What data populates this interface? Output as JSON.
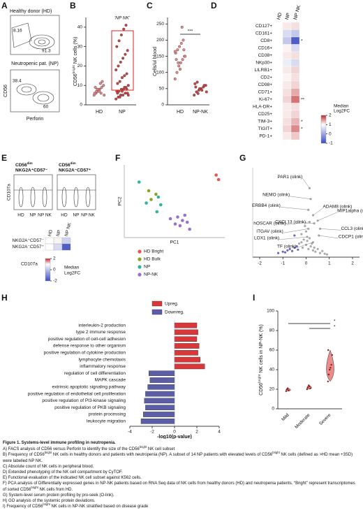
{
  "panels": {
    "A": {
      "label": "A",
      "title_top": "Healthy donor (HD)",
      "top_gates": [
        8.16,
        91.3
      ],
      "title_bottom": "Neutropenic pat. (NP)",
      "bottom_gates": [
        38.4,
        60
      ],
      "ylabel": "CD56",
      "xlabel": "Perforin"
    },
    "B": {
      "label": "B",
      "ylabel": [
        "CD56",
        {
          "sup": "bright"
        },
        " NK cells (%)"
      ],
      "annotation": "'NP NK'",
      "categories": [
        "HD",
        "NP"
      ],
      "ylim": [
        0,
        45
      ],
      "yticks": [
        0,
        10,
        20,
        30,
        40
      ],
      "values": [
        [
          5,
          6,
          7,
          8,
          9,
          10,
          6,
          7,
          8,
          11,
          12,
          5,
          9,
          8,
          7,
          6
        ],
        [
          3,
          4,
          5,
          5,
          6,
          6,
          7,
          7,
          8,
          8,
          9,
          10,
          11,
          12,
          14,
          15,
          16,
          18,
          20,
          22,
          24,
          26,
          28,
          30,
          33,
          36,
          39,
          41,
          5,
          6,
          4,
          7,
          9,
          8
        ]
      ]
    },
    "C": {
      "label": "C",
      "ylabel": "Cells/ul blood",
      "annotation": "***",
      "categories": [
        "HD",
        "NP-NK"
      ],
      "ylim": [
        0,
        270
      ],
      "yticks": [
        0,
        50,
        100,
        150,
        200,
        250
      ],
      "values": [
        [
          80,
          100,
          120,
          130,
          140,
          150,
          160,
          170,
          180,
          190,
          200,
          150,
          140,
          130,
          110,
          240,
          170,
          165
        ],
        [
          30,
          40,
          45,
          50,
          55,
          60,
          65,
          70,
          50,
          45,
          60,
          40,
          55,
          35
        ]
      ]
    },
    "D": {
      "label": "D",
      "columns": [
        "HD",
        "NP",
        "NP NK"
      ],
      "rows": [
        "CD127+",
        "CD161+",
        "CD8+",
        "CD16+",
        "CD38+",
        "NKp30+",
        "LILRB1+",
        "CD2+",
        "CD98+",
        "CD71+",
        "Ki-67+",
        "HLA-DR+",
        "CD25+",
        "TIM-3+",
        "TIGIT+",
        "PD-1+"
      ],
      "values": [
        [
          0,
          0.2,
          0.3
        ],
        [
          0,
          -0.2,
          -0.3
        ],
        [
          0,
          -0.3,
          -0.9
        ],
        [
          0,
          0.1,
          -0.2
        ],
        [
          0,
          0.2,
          0.3
        ],
        [
          0,
          -0.1,
          -0.2
        ],
        [
          0,
          0.2,
          0.4
        ],
        [
          0,
          0.1,
          0.3
        ],
        [
          0,
          0.2,
          0.4
        ],
        [
          0,
          0.3,
          0.8
        ],
        [
          0,
          0.4,
          1.3
        ],
        [
          0,
          0.2,
          0.3
        ],
        [
          0,
          0.2,
          0.4
        ],
        [
          0,
          0.3,
          0.7
        ],
        [
          0,
          0.4,
          1.1
        ],
        [
          0,
          0.2,
          0.5
        ]
      ],
      "stars": [
        null,
        null,
        "*",
        null,
        null,
        null,
        null,
        null,
        null,
        null,
        "**",
        null,
        null,
        "*",
        "*",
        null
      ],
      "legend_title": [
        "Median",
        "Log2FC"
      ],
      "clim": [
        -1,
        2
      ],
      "cticks": [
        2,
        1,
        0,
        -1
      ]
    },
    "E": {
      "label": "E",
      "plots": [
        {
          "title": [
            "CD56",
            {
              "sup": "dim"
            }
          ],
          "subtitle": "NKG2A⁺CD57⁻"
        },
        {
          "title": [
            "CD56",
            {
              "sup": "dim"
            }
          ],
          "subtitle": "NKG2A⁻CD57⁺"
        }
      ],
      "ylabel": "CD107a",
      "categories": [
        "HD",
        "NP",
        "NP NK"
      ],
      "heatmap": {
        "rows": [
          "NKG2A⁺CD57⁻",
          "NKG2A⁻CD57⁺"
        ],
        "values": [
          [
            0,
            0.1,
            -0.5
          ],
          [
            0,
            -0.4,
            -1.8
          ]
        ],
        "legend": "CD107a",
        "legend_title": [
          "Median",
          "Log2FC"
        ],
        "clim": [
          -2,
          2
        ],
        "cticks": [
          2,
          0,
          -2
        ]
      }
    },
    "F": {
      "label": "F",
      "xlabel": "PC1",
      "ylabel": "PC2",
      "xlim": [
        -1,
        1
      ],
      "ylim": [
        -1,
        1
      ],
      "groups": [
        {
          "name": "HD Bright",
          "color": "#e8554e",
          "x": [
            0.85,
            0.9
          ],
          "y": [
            0.75,
            0.62
          ]
        },
        {
          "name": "HD Bulk",
          "color": "#8aa323",
          "x": [
            -0.55,
            -0.5,
            -0.4
          ],
          "y": [
            0.3,
            0.05,
            0.2
          ]
        },
        {
          "name": "NP",
          "color": "#2cb59a",
          "x": [
            -0.75,
            -0.35,
            -0.3,
            -0.38,
            -0.6
          ],
          "y": [
            0.55,
            0.12,
            -0.1,
            -0.3,
            -0.05
          ]
        },
        {
          "name": "NP-NK",
          "color": "#9b6fd1",
          "x": [
            -0.1,
            0.05,
            0.15,
            0.25,
            0.1,
            0.3,
            0.0,
            0.2
          ],
          "y": [
            -0.5,
            -0.45,
            -0.55,
            -0.6,
            -0.7,
            -0.8,
            -0.65,
            -0.4
          ]
        }
      ]
    },
    "G": {
      "label": "G",
      "xlim": [
        -2.3,
        2.3
      ],
      "xticks": [
        -2,
        -1,
        0,
        1,
        2
      ],
      "ylim": [
        0,
        6
      ],
      "x": [
        -1.2,
        -1.0,
        -0.9,
        -0.8,
        -0.7,
        -0.6,
        -0.5,
        -0.4,
        -0.35,
        -0.3,
        -0.2,
        -0.15,
        -0.1,
        0.0,
        0.05,
        0.1,
        0.2,
        0.25,
        0.3,
        0.35,
        0.4,
        0.5,
        0.6,
        0.7,
        0.8,
        0.9,
        -0.5,
        -0.2,
        0.0,
        0.15,
        -0.05
      ],
      "y": [
        0.2,
        0.3,
        0.25,
        0.4,
        0.5,
        0.35,
        0.6,
        0.7,
        0.45,
        0.9,
        1.0,
        0.6,
        1.2,
        0.8,
        1.1,
        0.5,
        0.7,
        0.9,
        0.4,
        0.6,
        0.3,
        0.5,
        0.2,
        0.35,
        0.15,
        0.1,
        1.5,
        1.6,
        1.8,
        1.3,
        2.2
      ],
      "labels": [
        {
          "text": "PAR1 (olink)",
          "x": 0.15,
          "y": 5.0
        },
        {
          "text": "NEMO (olink)",
          "x": 0.2,
          "y": 4.2
        },
        {
          "text": "ERBB4 (olink)",
          "x": 0.1,
          "y": 3.4
        },
        {
          "text": "ADAM8 (olink)",
          "x": 0.3,
          "y": 3.0
        },
        {
          "text": "hOSCAR (olink)",
          "x": 0.15,
          "y": 2.5
        },
        {
          "text": "CXCL13 (olink)",
          "x": 0.35,
          "y": 2.4
        },
        {
          "text": "MIP1alpha (olink)",
          "x": 0.5,
          "y": 2.6
        },
        {
          "text": "ITGAV (olink)",
          "x": 0.1,
          "y": 2.0
        },
        {
          "text": "CCL3 (olink)",
          "x": 0.6,
          "y": 2.0
        },
        {
          "text": "CDCP1 (olink)",
          "x": 0.55,
          "y": 1.5
        },
        {
          "text": "LOX1 (olink)",
          "x": 0.05,
          "y": 1.4
        },
        {
          "text": "TF (olink)",
          "x": 0.3,
          "y": 1.0
        }
      ]
    },
    "H": {
      "label": "H",
      "legend": [
        {
          "name": "Upreg.",
          "color": "#d9383a"
        },
        {
          "name": "Downreg.",
          "color": "#5b5ea6"
        }
      ],
      "categories": [
        "interleukin-2 production",
        "type 2 immune response",
        "positive regulation of cell-cell adhesion",
        "defense response to other organism",
        "positive regulation of cytokine production",
        "lymphocyte chemotaxis",
        "inflammatory response",
        "regulation of cell differentiation",
        "MAPK cascade",
        "extrinsic apoptotic signaling pathway",
        "positive regulation of endothelial cell proliferation",
        "positive regulation of PI3-kinase signaling",
        "positive regulation of PKB signaling",
        "protein processing",
        "leukocyte migration"
      ],
      "values": [
        2.0,
        2.1,
        2.0,
        2.2,
        2.1,
        2.3,
        2.7,
        -2.3,
        -2.2,
        -2.4,
        -2.6,
        -2.7,
        -2.6,
        -2.8,
        -3.0
      ],
      "xlim": [
        -4,
        4
      ],
      "xticks": [
        -4,
        -2,
        0,
        2,
        4
      ],
      "xlabel": "-log10(p-value)"
    },
    "I": {
      "label": "I",
      "ylabel": [
        "CD56",
        {
          "sup": "bright"
        },
        " NK cells in NP-NK (%)"
      ],
      "ylim": [
        0,
        100
      ],
      "yticks": [
        0,
        20,
        40,
        60,
        80,
        100
      ],
      "categories": [
        "Mild",
        "Moderate",
        "Severe"
      ],
      "values": [
        [
          18,
          20,
          21,
          19
        ],
        [
          20,
          22,
          24,
          23,
          21
        ],
        [
          28,
          35,
          40,
          42,
          45,
          55,
          60
        ]
      ],
      "stars": [
        "*",
        "*"
      ]
    }
  },
  "caption": {
    "title": "Figure 1. Systems-level immune profiling in neutropenia.",
    "lines": [
      [
        "A)  FACS analysis of CD56 versus Perforin to identify the size of the CD56",
        {
          "sup": "bright"
        },
        " NK cell subset"
      ],
      [
        "B) Frequency of CD56",
        {
          "sup": "bright"
        },
        " NK cells in healthy donors and patients with neutropenia (NP). A subset of 14 NP patients with elevated levels of CD56",
        {
          "sup": "bright"
        },
        " NK cells (defined as >HD mean +3SD) were labelled NP NK."
      ],
      [
        "C) Absolute count of NK cells in peripheral blood."
      ],
      [
        "D) Extended phenotyping of the NK cell compartment by CyTOF."
      ],
      [
        "E) Functional evaluation of the indicated NK cell subset against K562 cells."
      ],
      [
        "F) PCA analysis of Differentially expressed genes in NP-NK patients based on RNA Seq data of NK cells from healthy donors (HD) and neutropenia patients. “Bright” represent transcriptomes of sorted CD56",
        {
          "sup": "bright"
        },
        " NK cells from HD."
      ],
      [
        "G) System-level serum protein profiling by pro-seek (O-link)."
      ],
      [
        "H) GO analysis of the systemic protein deviations."
      ],
      [
        "I) Frequency of CD56",
        {
          "sup": "bright"
        },
        " NK cells in NP-NK stratified based on disease grade"
      ]
    ]
  }
}
